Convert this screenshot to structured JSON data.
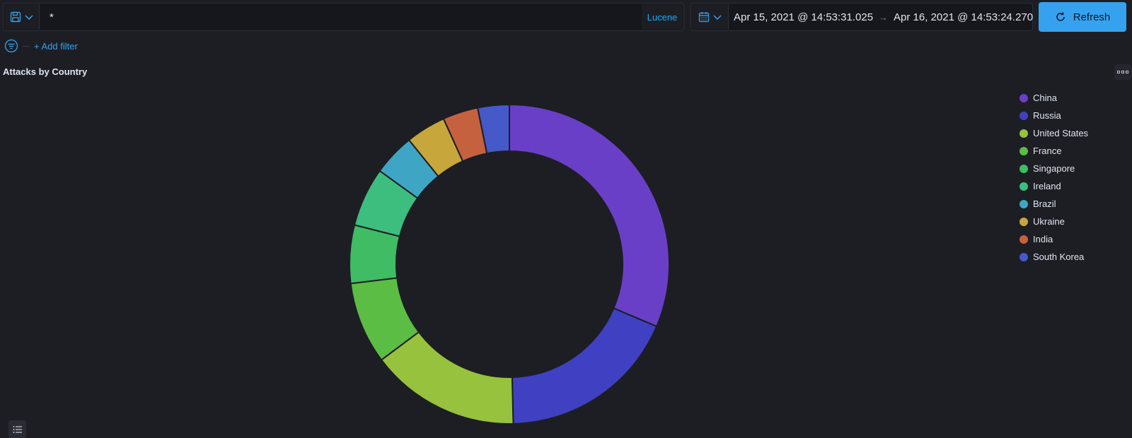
{
  "query": {
    "value": "*",
    "language": "Lucene"
  },
  "time_range": {
    "start": "Apr 15, 2021 @ 14:53:31.025",
    "arrow": "→",
    "end": "Apr 16, 2021 @ 14:53:24.270"
  },
  "refresh_label": "Refresh",
  "add_filter_label": "+ Add filter",
  "panel": {
    "title": "Attacks by Country"
  },
  "colors": {
    "accent": "#36a2ef",
    "background": "#1d1e24"
  },
  "chart_data": {
    "type": "pie",
    "donut": true,
    "legend_position": "right",
    "slices": [
      {
        "label": "China",
        "value": 32.5,
        "color": "#6a3fc7"
      },
      {
        "label": "Russia",
        "value": 18.9,
        "color": "#3f41c2"
      },
      {
        "label": "United States",
        "value": 15.7,
        "color": "#97c23d"
      },
      {
        "label": "France",
        "value": 8.6,
        "color": "#5bbd44"
      },
      {
        "label": "Singapore",
        "value": 6.1,
        "color": "#3fbc64"
      },
      {
        "label": "Ireland",
        "value": 6.2,
        "color": "#3dbe7e"
      },
      {
        "label": "Brazil",
        "value": 4.4,
        "color": "#3ea6c4"
      },
      {
        "label": "Ukraine",
        "value": 4.2,
        "color": "#c7a73c"
      },
      {
        "label": "India",
        "value": 3.7,
        "color": "#c6613f"
      },
      {
        "label": "South Korea",
        "value": 3.3,
        "color": "#4559c8"
      }
    ]
  }
}
